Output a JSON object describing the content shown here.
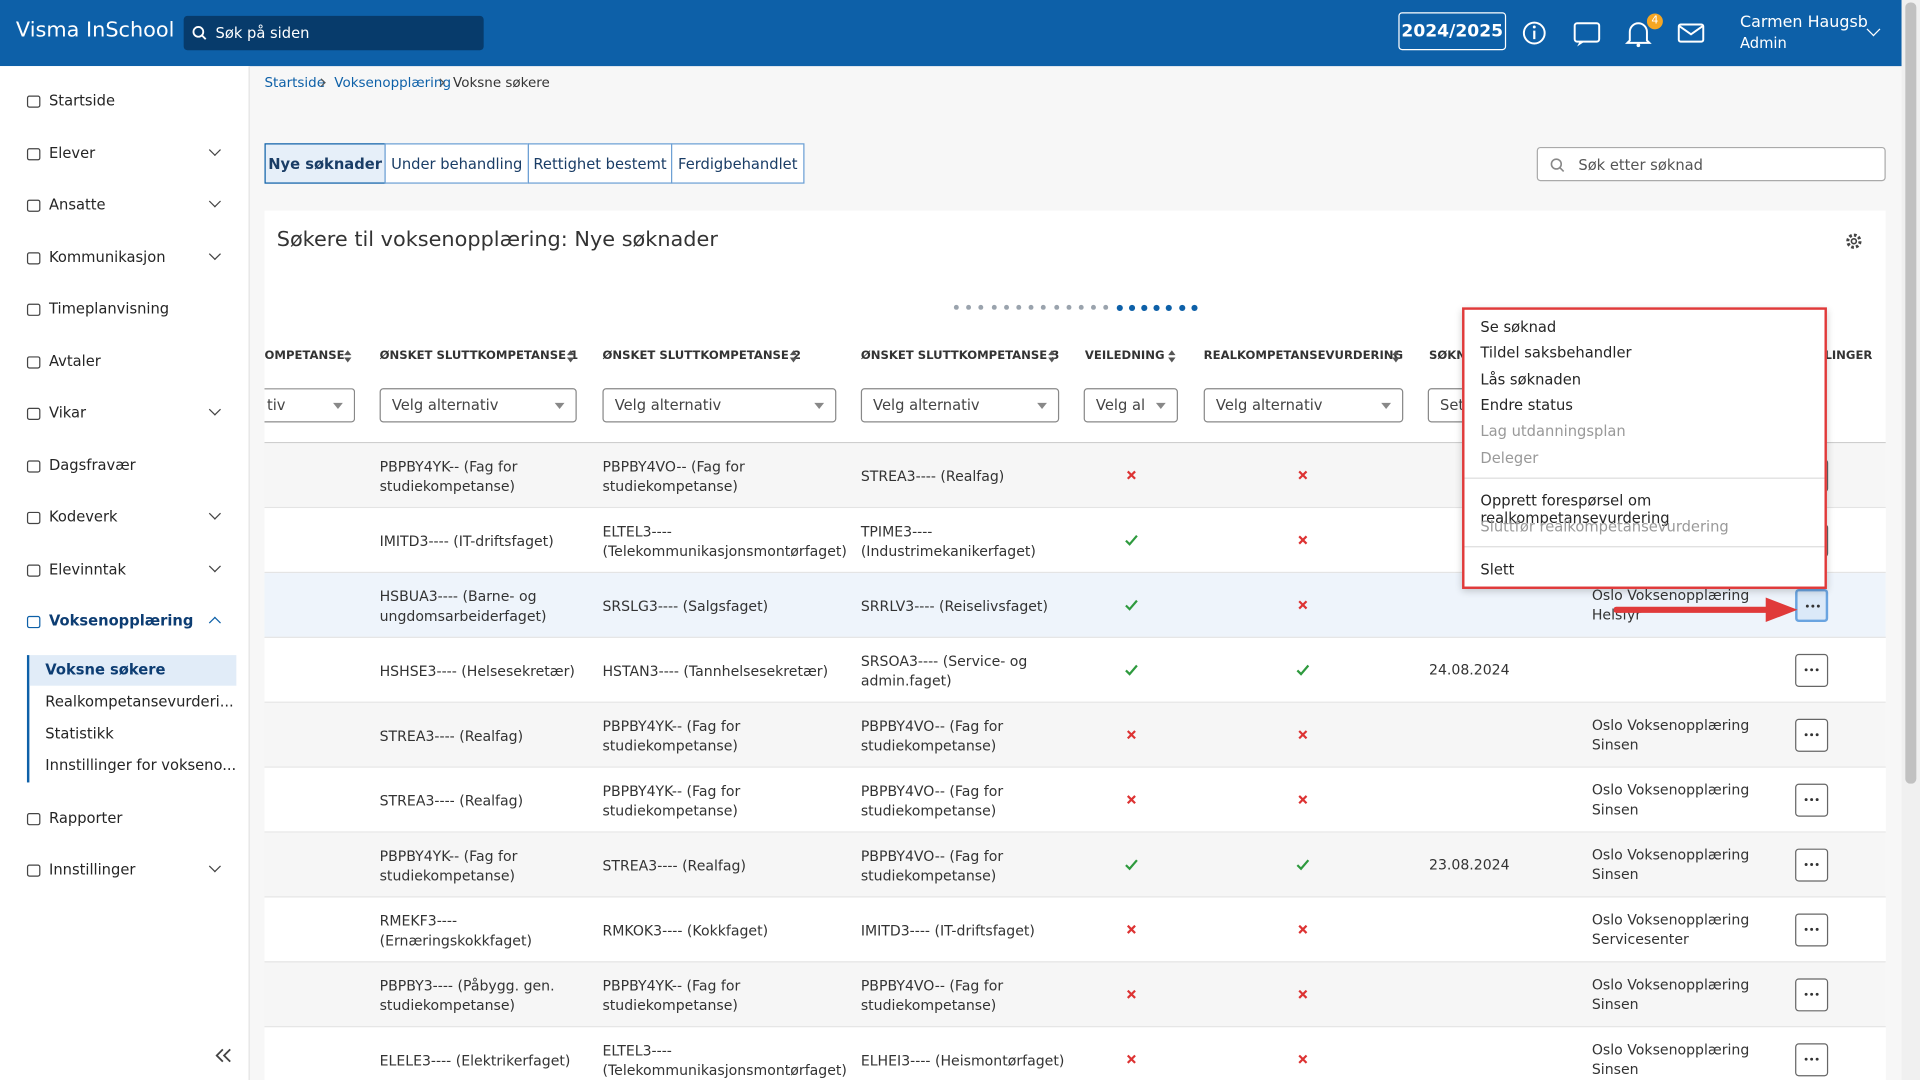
{
  "header": {
    "brand": "Visma InSchool",
    "search": "Søk på siden",
    "year": "2024/2025",
    "notifications": "4",
    "user": "Carmen Haugsb",
    "role": "Admin"
  },
  "sidebar": {
    "items": [
      {
        "label": "Startside"
      },
      {
        "label": "Elever",
        "expandable": true
      },
      {
        "label": "Ansatte",
        "expandable": true
      },
      {
        "label": "Kommunikasjon",
        "expandable": true
      },
      {
        "label": "Timeplanvisning"
      },
      {
        "label": "Avtaler"
      },
      {
        "label": "Vikar",
        "expandable": true
      },
      {
        "label": "Dagsfravær"
      },
      {
        "label": "Kodeverk",
        "expandable": true
      },
      {
        "label": "Elevinntak",
        "expandable": true
      },
      {
        "label": "Voksenopplæring",
        "expandable": true,
        "open": true,
        "children": [
          "Voksne søkere",
          "Realkompetansevurderi...",
          "Statistikk",
          "Innstillinger for vokseno..."
        ]
      },
      {
        "label": "Rapporter"
      },
      {
        "label": "Innstillinger",
        "expandable": true
      }
    ]
  },
  "breadcrumb": [
    "Startside",
    "Voksenopplæring",
    "Voksne søkere"
  ],
  "tabs": [
    "Nye søknader",
    "Under behandling",
    "Rettighet bestemt",
    "Ferdigbehandlet"
  ],
  "search_placeholder": "Søk etter søknad",
  "panel_title": "Søkere til voksenopplæring: Nye søknader",
  "table": {
    "columns": [
      "OMPETANSE",
      "ØNSKET SLUTTKOMPETANSE 1",
      "ØNSKET SLUTTKOMPETANSE 2",
      "ØNSKET SLUTTKOMPETANSE 3",
      "VEILEDNING",
      "REALKOMPETANSEVURDERING",
      "SØKN",
      "PLINGER"
    ],
    "filters": [
      "tiv",
      "Velg alternativ",
      "Velg alternativ",
      "Velg alternativ",
      "Velg al",
      "Velg alternativ",
      "Set"
    ],
    "rows": [
      {
        "c1": "PBPBY4YK-- (Fag for studiekompetanse)",
        "c2": "PBPBY4VO-- (Fag for studiekompetanse)",
        "c3": "STREA3---- (Realfag)",
        "guidance": false,
        "assessment": false
      },
      {
        "c1": "IMITD3---- (IT-driftsfaget)",
        "c2": "ELTEL3---- (Telekommunikasjonsmontørfaget)",
        "c3": "TPIME3---- (Industrimekanikerfaget)",
        "guidance": true,
        "assessment": false
      },
      {
        "c1": "HSBUA3---- (Barne- og ungdomsarbeiderfaget)",
        "c2": "SRSLG3---- (Salgsfaget)",
        "c3": "SRRLV3---- (Reiselivsfaget)",
        "guidance": true,
        "assessment": false,
        "school": "Oslo Voksenopplæring Helsfyr"
      },
      {
        "c1": "HSHSE3---- (Helsesekretær)",
        "c2": "HSTAN3---- (Tannhelsesekretær)",
        "c3": "SRSOA3---- (Service- og admin.faget)",
        "guidance": true,
        "assessment": true,
        "date": "24.08.2024"
      },
      {
        "c1": "STREA3---- (Realfag)",
        "c2": "PBPBY4YK-- (Fag for studiekompetanse)",
        "c3": "PBPBY4VO-- (Fag for studiekompetanse)",
        "guidance": false,
        "assessment": false,
        "school": "Oslo Voksenopplæring Sinsen"
      },
      {
        "c1": "STREA3---- (Realfag)",
        "c2": "PBPBY4YK-- (Fag for studiekompetanse)",
        "c3": "PBPBY4VO-- (Fag for studiekompetanse)",
        "guidance": false,
        "assessment": false,
        "school": "Oslo Voksenopplæring Sinsen"
      },
      {
        "c1": "PBPBY4YK-- (Fag for studiekompetanse)",
        "c2": "STREA3---- (Realfag)",
        "c3": "PBPBY4VO-- (Fag for studiekompetanse)",
        "guidance": true,
        "assessment": true,
        "date": "23.08.2024",
        "school": "Oslo Voksenopplæring Sinsen"
      },
      {
        "c1": "RMEKF3---- (Ernæringskokkfaget)",
        "c2": "RMKOK3---- (Kokkfaget)",
        "c3": "IMITD3---- (IT-driftsfaget)",
        "guidance": false,
        "assessment": false,
        "school": "Oslo Voksenopplæring Servicesenter"
      },
      {
        "c1": "PBPBY3---- (Påbygg. gen. studiekompetanse)",
        "c2": "PBPBY4YK-- (Fag for studiekompetanse)",
        "c3": "PBPBY4VO-- (Fag for studiekompetanse)",
        "guidance": false,
        "assessment": false,
        "school": "Oslo Voksenopplæring Sinsen"
      },
      {
        "c1": "ELELE3---- (Elektrikerfaget)",
        "c2": "ELTEL3---- (Telekommunikasjonsmontørfaget)",
        "c3": "ELHEI3---- (Heismontørfaget)",
        "guidance": false,
        "assessment": false,
        "school": "Oslo Voksenopplæring Sinsen"
      }
    ]
  },
  "context_menu": {
    "groups": [
      [
        {
          "label": "Se søknad"
        },
        {
          "label": "Tildel saksbehandler"
        },
        {
          "label": "Lås søknaden"
        },
        {
          "label": "Endre status"
        },
        {
          "label": "Lag utdanningsplan",
          "disabled": true
        },
        {
          "label": "Deleger",
          "disabled": true
        }
      ],
      [
        {
          "label": "Opprett forespørsel om realkompetansevurdering"
        },
        {
          "label": "Sluttfør realkompetansevurdering",
          "disabled": true
        }
      ],
      [
        {
          "label": "Slett"
        }
      ]
    ]
  }
}
